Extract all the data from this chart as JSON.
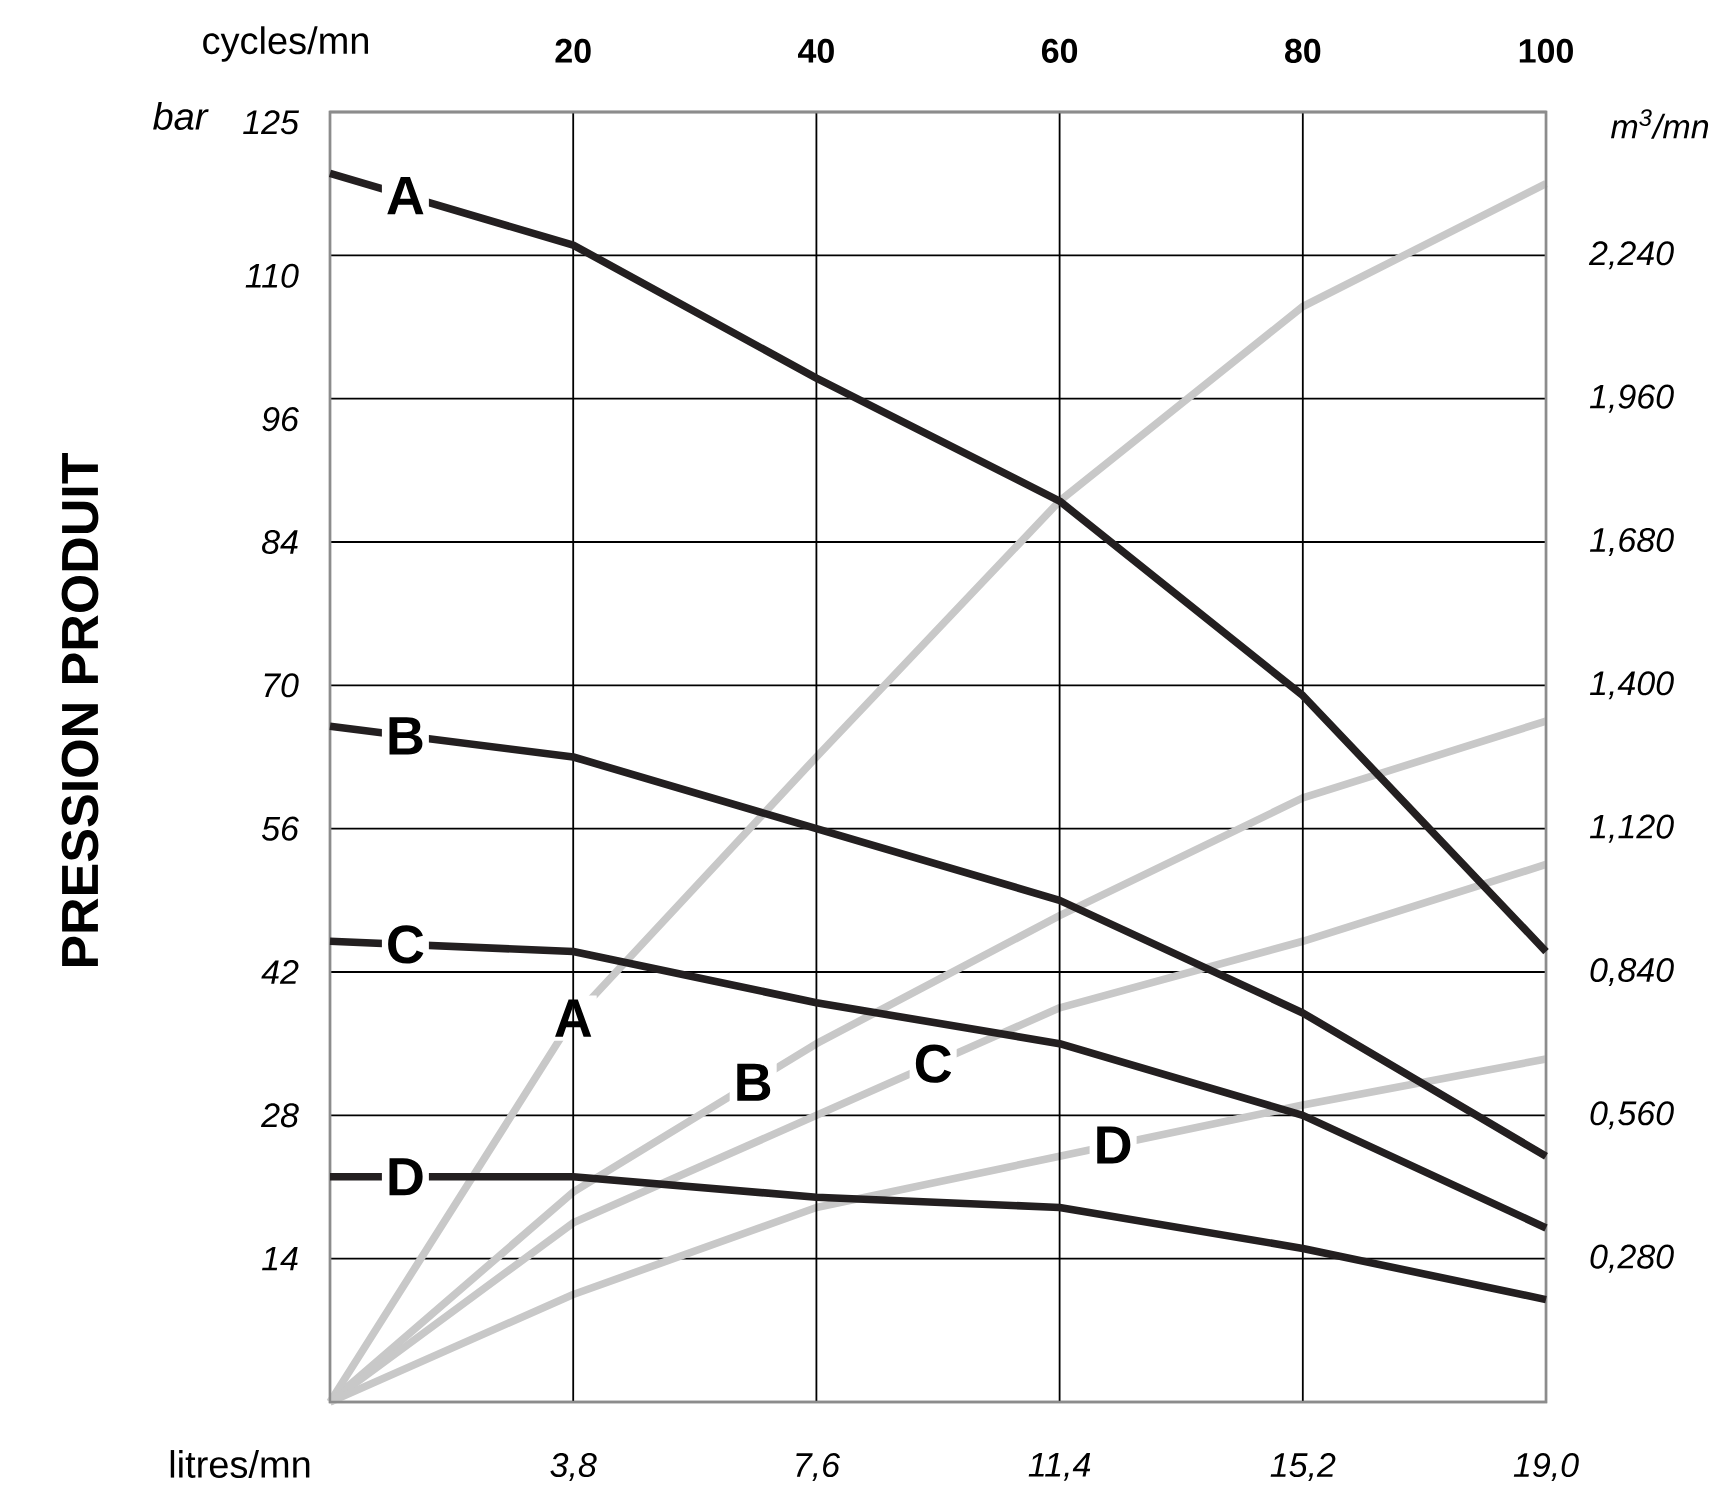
{
  "chart_data": {
    "type": "line",
    "ylabel": "PRESSION PRODUIT",
    "xlabel": "litres/mn",
    "x2label": "cycles/mn",
    "y2label": "m$^{3}$/mn",
    "annotations": [
      "bar"
    ],
    "xlim": [
      0,
      19.0
    ],
    "xticks": [
      {
        "value": 3.8,
        "label": "3,8"
      },
      {
        "value": 7.6,
        "label": "7,6"
      },
      {
        "value": 11.4,
        "label": "11,4"
      },
      {
        "value": 15.2,
        "label": "15,2"
      },
      {
        "value": 19.0,
        "label": "19,0"
      }
    ],
    "x2lim": [
      0,
      100
    ],
    "x2ticks": [
      20,
      40,
      60,
      80,
      100
    ],
    "ylim": [
      0,
      126
    ],
    "yticks": [
      14,
      28,
      42,
      56,
      70,
      84,
      96,
      110,
      125
    ],
    "y2lim": [
      0,
      2.52
    ],
    "y2ticks": [
      {
        "value": 0.28,
        "label": "0,280"
      },
      {
        "value": 0.56,
        "label": "0,560"
      },
      {
        "value": 0.84,
        "label": "0,840"
      },
      {
        "value": 1.12,
        "label": "1,120"
      },
      {
        "value": 1.4,
        "label": "1,400"
      },
      {
        "value": 1.68,
        "label": "1,680"
      },
      {
        "value": 1.96,
        "label": "1,960"
      },
      {
        "value": 2.24,
        "label": "2,240"
      }
    ],
    "grid": true,
    "x": [
      0,
      3.8,
      7.6,
      11.4,
      15.2,
      19.0
    ],
    "series": [
      {
        "name": "A",
        "color": "#c8c8c8",
        "axis": "y2",
        "values": [
          0,
          0.75,
          1.26,
          1.76,
          2.14,
          2.38
        ]
      },
      {
        "name": "B",
        "color": "#c8c8c8",
        "axis": "y2",
        "values": [
          0,
          0.41,
          0.7,
          0.95,
          1.18,
          1.33
        ]
      },
      {
        "name": "C",
        "color": "#c8c8c8",
        "axis": "y2",
        "values": [
          0,
          0.35,
          0.56,
          0.77,
          0.9,
          1.05
        ]
      },
      {
        "name": "D",
        "color": "#c8c8c8",
        "axis": "y2",
        "values": [
          0,
          0.21,
          0.38,
          0.48,
          0.58,
          0.67
        ]
      },
      {
        "name": "A",
        "color": "#231f20",
        "values": [
          120,
          113,
          100,
          88,
          69,
          44
        ]
      },
      {
        "name": "B",
        "color": "#231f20",
        "values": [
          66,
          63,
          56,
          49,
          38,
          24
        ]
      },
      {
        "name": "C",
        "color": "#231f20",
        "values": [
          45,
          44,
          39,
          35,
          28,
          17
        ]
      },
      {
        "name": "D",
        "color": "#231f20",
        "values": [
          22,
          22,
          20,
          19,
          15,
          10
        ]
      }
    ]
  }
}
